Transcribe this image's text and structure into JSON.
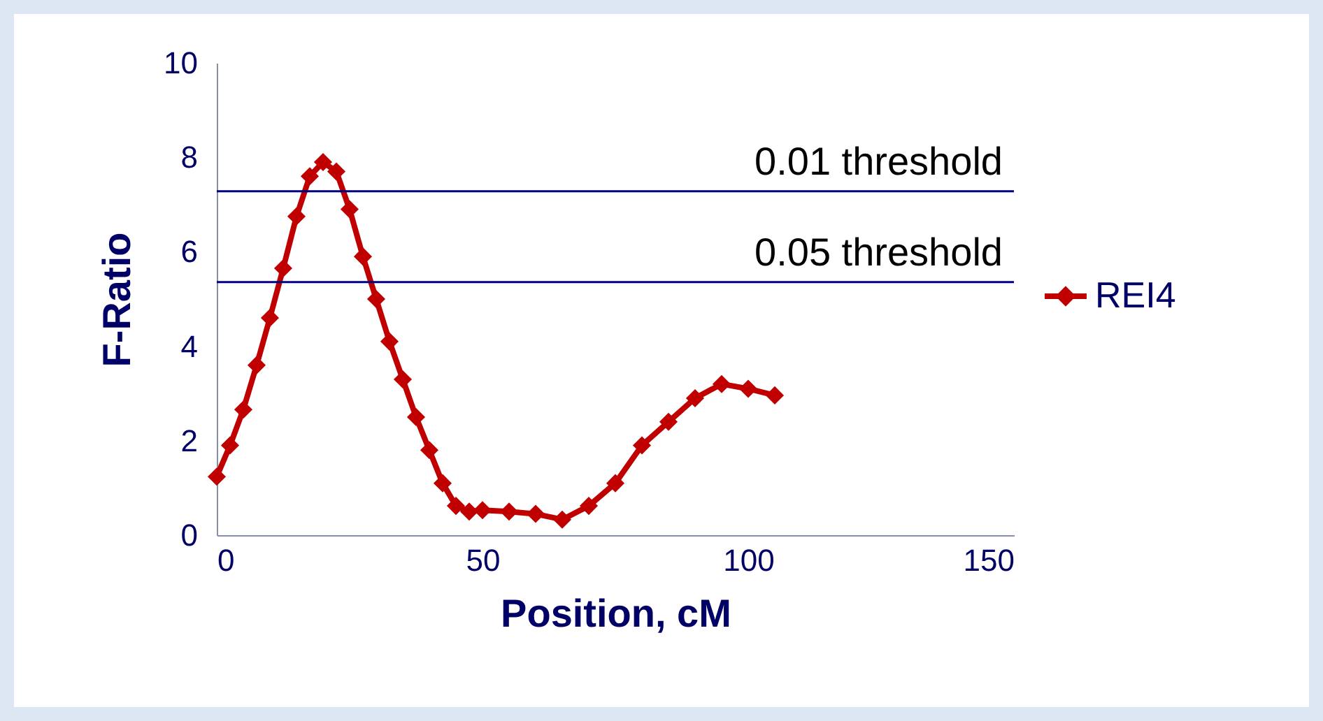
{
  "chart_data": {
    "type": "line",
    "xlabel": "Position, cM",
    "ylabel": "F-Ratio",
    "x": [
      0,
      2.5,
      5,
      7.5,
      10,
      12.5,
      15,
      17.5,
      20,
      22.5,
      25,
      27.5,
      30,
      32.5,
      35,
      37.5,
      40,
      42.5,
      45,
      47.5,
      50,
      55,
      60,
      65,
      70,
      75,
      80,
      85,
      90,
      95,
      100,
      105
    ],
    "series": [
      {
        "name": "REI4",
        "color": "#c00000",
        "values": [
          1.24,
          1.9,
          2.66,
          3.6,
          4.6,
          5.65,
          6.75,
          7.6,
          7.9,
          7.7,
          6.9,
          5.9,
          5.0,
          4.1,
          3.3,
          2.5,
          1.8,
          1.1,
          0.62,
          0.5,
          0.53,
          0.5,
          0.45,
          0.33,
          0.62,
          1.1,
          1.9,
          2.4,
          2.9,
          3.2,
          3.1,
          2.96
        ]
      }
    ],
    "xlim": [
      0,
      150
    ],
    "xticks": [
      0,
      50,
      100,
      150
    ],
    "ylim": [
      0,
      10
    ],
    "yticks": [
      0,
      2,
      4,
      6,
      8,
      10
    ],
    "ref_lines": [
      {
        "axis": "y",
        "value": 7.28,
        "label": "0.01 threshold",
        "color": "#000080"
      },
      {
        "axis": "y",
        "value": 5.36,
        "label": "0.05 threshold",
        "color": "#000080"
      }
    ],
    "marker": "diamond",
    "legend": "right",
    "grid": false
  }
}
